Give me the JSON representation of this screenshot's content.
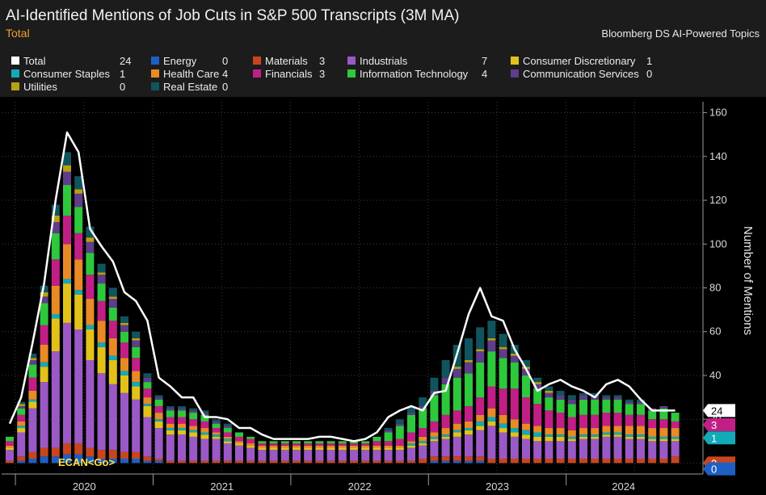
{
  "header": {
    "title": "AI-Identified Mentions of Job Cuts in S&P 500 Transcripts (3M MA)",
    "subtitle": "Total",
    "source": "Bloomberg DS AI-Powered Topics"
  },
  "footer": {
    "command": "ECAN<Go>"
  },
  "legend": [
    {
      "name": "Total",
      "value": "24",
      "color": "#ffffff"
    },
    {
      "name": "Energy",
      "value": "0",
      "color": "#1f5fc4"
    },
    {
      "name": "Materials",
      "value": "3",
      "color": "#c8461e"
    },
    {
      "name": "Industrials",
      "value": "7",
      "color": "#9b59c6"
    },
    {
      "name": "Consumer Discretionary",
      "value": "1",
      "color": "#e2c21a"
    },
    {
      "name": "Consumer Staples",
      "value": "1",
      "color": "#12a9b8"
    },
    {
      "name": "Health Care",
      "value": "4",
      "color": "#e88a26"
    },
    {
      "name": "Financials",
      "value": "3",
      "color": "#c21f86"
    },
    {
      "name": "Information Technology",
      "value": "4",
      "color": "#2ec83c"
    },
    {
      "name": "Communication Services",
      "value": "0",
      "color": "#5f3d8c"
    },
    {
      "name": "Utilities",
      "value": "0",
      "color": "#b8a014"
    },
    {
      "name": "Real Estate",
      "value": "0",
      "color": "#10545e"
    }
  ],
  "chart_data": {
    "type": "bar",
    "stacked": true,
    "title": "AI-Identified Mentions of Job Cuts in S&P 500 Transcripts (3M MA)",
    "ylabel": "Number of Mentions",
    "ylim": [
      -5,
      165
    ],
    "yticks": [
      20,
      40,
      60,
      80,
      100,
      120,
      140,
      160
    ],
    "y_axis_side": "right",
    "grid": true,
    "legend_placement": "top",
    "year_labels": [
      "2020",
      "2021",
      "2022",
      "2023",
      "2024"
    ],
    "x": [
      "2019-12",
      "2020-01",
      "2020-02",
      "2020-03",
      "2020-04",
      "2020-05",
      "2020-06",
      "2020-07",
      "2020-08",
      "2020-09",
      "2020-10",
      "2020-11",
      "2020-12",
      "2021-01",
      "2021-02",
      "2021-03",
      "2021-04",
      "2021-05",
      "2021-06",
      "2021-07",
      "2021-08",
      "2021-09",
      "2021-10",
      "2021-11",
      "2021-12",
      "2022-01",
      "2022-02",
      "2022-03",
      "2022-04",
      "2022-05",
      "2022-06",
      "2022-07",
      "2022-08",
      "2022-09",
      "2022-10",
      "2022-11",
      "2022-12",
      "2023-01",
      "2023-02",
      "2023-03",
      "2023-04",
      "2023-05",
      "2023-06",
      "2023-07",
      "2023-08",
      "2023-09",
      "2023-10",
      "2023-11",
      "2023-12",
      "2024-01",
      "2024-02",
      "2024-03",
      "2024-04",
      "2024-05",
      "2024-06",
      "2024-07",
      "2024-08",
      "2024-09",
      "2024-10"
    ],
    "series": [
      {
        "name": "Energy",
        "color": "#1f5fc4",
        "values": [
          0,
          1,
          2,
          3,
          3,
          4,
          4,
          3,
          2,
          2,
          2,
          2,
          1,
          1,
          0,
          0,
          0,
          0,
          0,
          0,
          0,
          0,
          0,
          0,
          0,
          0,
          0,
          0,
          0,
          0,
          0,
          0,
          0,
          0,
          0,
          0,
          0,
          1,
          1,
          1,
          1,
          1,
          0,
          0,
          0,
          0,
          0,
          0,
          0,
          0,
          0,
          0,
          0,
          0,
          0,
          0,
          0,
          0,
          0
        ]
      },
      {
        "name": "Materials",
        "color": "#c8461e",
        "values": [
          1,
          2,
          3,
          4,
          4,
          5,
          5,
          4,
          4,
          4,
          3,
          3,
          2,
          1,
          1,
          1,
          1,
          1,
          1,
          1,
          1,
          1,
          1,
          1,
          1,
          1,
          1,
          1,
          1,
          1,
          1,
          1,
          1,
          1,
          1,
          1,
          2,
          2,
          2,
          2,
          2,
          2,
          2,
          2,
          2,
          2,
          2,
          2,
          2,
          2,
          2,
          2,
          2,
          2,
          2,
          2,
          2,
          2,
          3
        ]
      },
      {
        "name": "Industrials",
        "color": "#9b59c6",
        "values": [
          5,
          11,
          20,
          30,
          44,
          55,
          52,
          40,
          35,
          30,
          27,
          24,
          18,
          14,
          12,
          12,
          11,
          10,
          10,
          8,
          7,
          6,
          5,
          5,
          5,
          5,
          5,
          5,
          5,
          5,
          5,
          5,
          5,
          5,
          5,
          6,
          6,
          7,
          8,
          9,
          10,
          12,
          15,
          12,
          10,
          9,
          8,
          8,
          8,
          8,
          9,
          9,
          10,
          10,
          9,
          9,
          8,
          8,
          7
        ]
      },
      {
        "name": "Consumer Discretionary",
        "color": "#e2c21a",
        "values": [
          1,
          2,
          3,
          7,
          15,
          18,
          16,
          14,
          12,
          11,
          8,
          6,
          5,
          3,
          2,
          2,
          2,
          2,
          1,
          1,
          1,
          1,
          1,
          1,
          1,
          1,
          1,
          1,
          1,
          1,
          1,
          1,
          1,
          1,
          1,
          1,
          1,
          1,
          1,
          2,
          2,
          2,
          2,
          2,
          2,
          2,
          2,
          2,
          2,
          1,
          1,
          1,
          1,
          1,
          1,
          1,
          1,
          1,
          1
        ]
      },
      {
        "name": "Consumer Staples",
        "color": "#12a9b8",
        "values": [
          0,
          1,
          1,
          2,
          2,
          2,
          2,
          2,
          2,
          2,
          2,
          2,
          1,
          1,
          1,
          1,
          1,
          1,
          1,
          1,
          0,
          0,
          0,
          0,
          0,
          0,
          0,
          0,
          0,
          0,
          0,
          0,
          0,
          0,
          0,
          1,
          1,
          1,
          1,
          1,
          1,
          2,
          2,
          2,
          2,
          2,
          2,
          1,
          1,
          1,
          1,
          1,
          1,
          1,
          1,
          1,
          1,
          1,
          1
        ]
      },
      {
        "name": "Health Care",
        "color": "#e88a26",
        "values": [
          1,
          2,
          4,
          8,
          13,
          16,
          14,
          12,
          10,
          8,
          6,
          5,
          3,
          3,
          2,
          2,
          2,
          2,
          1,
          1,
          1,
          1,
          1,
          1,
          1,
          1,
          1,
          1,
          1,
          1,
          1,
          1,
          1,
          1,
          1,
          1,
          2,
          2,
          3,
          3,
          3,
          3,
          4,
          4,
          4,
          3,
          3,
          3,
          3,
          3,
          3,
          3,
          3,
          3,
          4,
          4,
          4,
          4,
          4
        ]
      },
      {
        "name": "Financials",
        "color": "#c21f86",
        "values": [
          2,
          3,
          6,
          9,
          12,
          13,
          12,
          11,
          9,
          8,
          7,
          6,
          4,
          3,
          3,
          3,
          3,
          3,
          2,
          2,
          2,
          2,
          1,
          1,
          1,
          1,
          1,
          1,
          1,
          1,
          1,
          1,
          2,
          2,
          3,
          4,
          4,
          5,
          6,
          6,
          7,
          8,
          10,
          12,
          14,
          12,
          10,
          8,
          7,
          6,
          6,
          6,
          6,
          6,
          5,
          5,
          4,
          4,
          3
        ]
      },
      {
        "name": "Information Technology",
        "color": "#2ec83c",
        "values": [
          2,
          3,
          6,
          10,
          12,
          14,
          12,
          10,
          8,
          6,
          5,
          5,
          3,
          3,
          3,
          3,
          3,
          3,
          2,
          2,
          2,
          1,
          1,
          1,
          1,
          1,
          1,
          1,
          1,
          1,
          1,
          1,
          2,
          4,
          6,
          8,
          9,
          12,
          14,
          15,
          15,
          16,
          16,
          14,
          12,
          10,
          7,
          6,
          6,
          6,
          7,
          7,
          6,
          6,
          5,
          5,
          4,
          5,
          4
        ]
      },
      {
        "name": "Communication Services",
        "color": "#5f3d8c",
        "values": [
          0,
          1,
          2,
          3,
          5,
          6,
          6,
          5,
          4,
          4,
          3,
          3,
          2,
          1,
          1,
          1,
          1,
          1,
          1,
          1,
          0,
          0,
          0,
          0,
          0,
          0,
          0,
          0,
          0,
          0,
          0,
          0,
          0,
          1,
          1,
          1,
          1,
          2,
          3,
          4,
          5,
          5,
          5,
          4,
          3,
          3,
          2,
          2,
          2,
          2,
          2,
          2,
          1,
          1,
          1,
          1,
          1,
          1,
          0
        ]
      },
      {
        "name": "Utilities",
        "color": "#b8a014",
        "values": [
          0,
          1,
          1,
          2,
          3,
          3,
          2,
          2,
          1,
          1,
          1,
          1,
          0,
          0,
          0,
          0,
          0,
          0,
          0,
          0,
          0,
          0,
          0,
          0,
          0,
          0,
          0,
          0,
          0,
          0,
          0,
          0,
          0,
          0,
          0,
          0,
          0,
          0,
          0,
          1,
          1,
          1,
          1,
          1,
          1,
          1,
          1,
          1,
          0,
          0,
          0,
          0,
          0,
          0,
          0,
          0,
          0,
          0,
          0
        ]
      },
      {
        "name": "Real Estate",
        "color": "#10545e",
        "values": [
          0,
          1,
          2,
          3,
          5,
          6,
          6,
          5,
          4,
          4,
          3,
          3,
          2,
          1,
          1,
          1,
          1,
          1,
          1,
          1,
          0,
          0,
          0,
          0,
          0,
          0,
          0,
          0,
          0,
          0,
          0,
          0,
          0,
          1,
          2,
          3,
          4,
          6,
          8,
          10,
          10,
          10,
          8,
          6,
          4,
          3,
          2,
          2,
          2,
          2,
          1,
          1,
          1,
          1,
          1,
          1,
          0,
          0,
          0
        ]
      }
    ],
    "total": {
      "name": "Total",
      "color": "#ffffff",
      "values": [
        18,
        30,
        55,
        82,
        120,
        151,
        142,
        107,
        99,
        92,
        78,
        74,
        65,
        39,
        35,
        30,
        30,
        21,
        21,
        20,
        16,
        16,
        13,
        11,
        11,
        11,
        11,
        12,
        12,
        11,
        10,
        11,
        14,
        21,
        24,
        26,
        24,
        32,
        33,
        50,
        68,
        80,
        67,
        65,
        52,
        43,
        33,
        36,
        38,
        35,
        33,
        30,
        36,
        38,
        35,
        29,
        24,
        24,
        24
      ]
    },
    "last_value_labels": [
      {
        "value": "24",
        "color": "#ffffff"
      },
      {
        "value": "3",
        "color": "#c21f86"
      },
      {
        "value": "1",
        "color": "#12a9b8"
      },
      {
        "value": "3",
        "color": "#c8461e"
      },
      {
        "value": "0",
        "color": "#1f5fc4"
      }
    ]
  }
}
